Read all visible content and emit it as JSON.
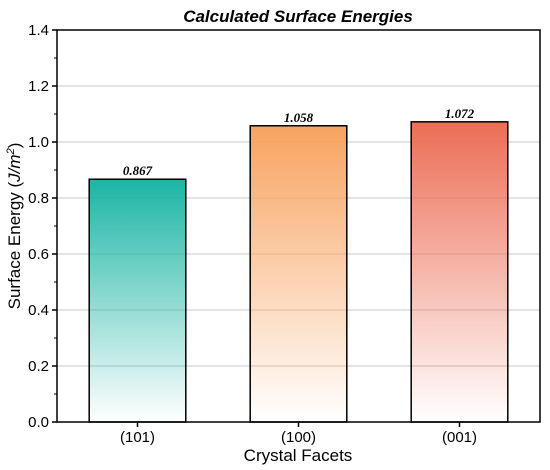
{
  "chart_data": {
    "type": "bar",
    "title": "Calculated Surface Energies",
    "xlabel": "Crystal Facets",
    "ylabel_main": "Surface Energy (",
    "ylabel_unit_base": "J/m",
    "ylabel_unit_exp": "2",
    "ylabel_close": ")",
    "categories": [
      "(101)",
      "(100)",
      "(001)"
    ],
    "values": [
      0.867,
      1.058,
      1.072
    ],
    "value_labels": [
      "0.867",
      "1.058",
      "1.072"
    ],
    "ylim": [
      0.0,
      1.4
    ],
    "yticks": [
      0.0,
      0.2,
      0.4,
      0.6,
      0.8,
      1.0,
      1.2,
      1.4
    ],
    "ytick_labels": [
      "0.0",
      "0.2",
      "0.4",
      "0.6",
      "0.8",
      "1.0",
      "1.2",
      "1.4"
    ],
    "grid": true,
    "bar_colors": [
      "#1cb5a4",
      "#f8a35f",
      "#ec6e55"
    ]
  }
}
